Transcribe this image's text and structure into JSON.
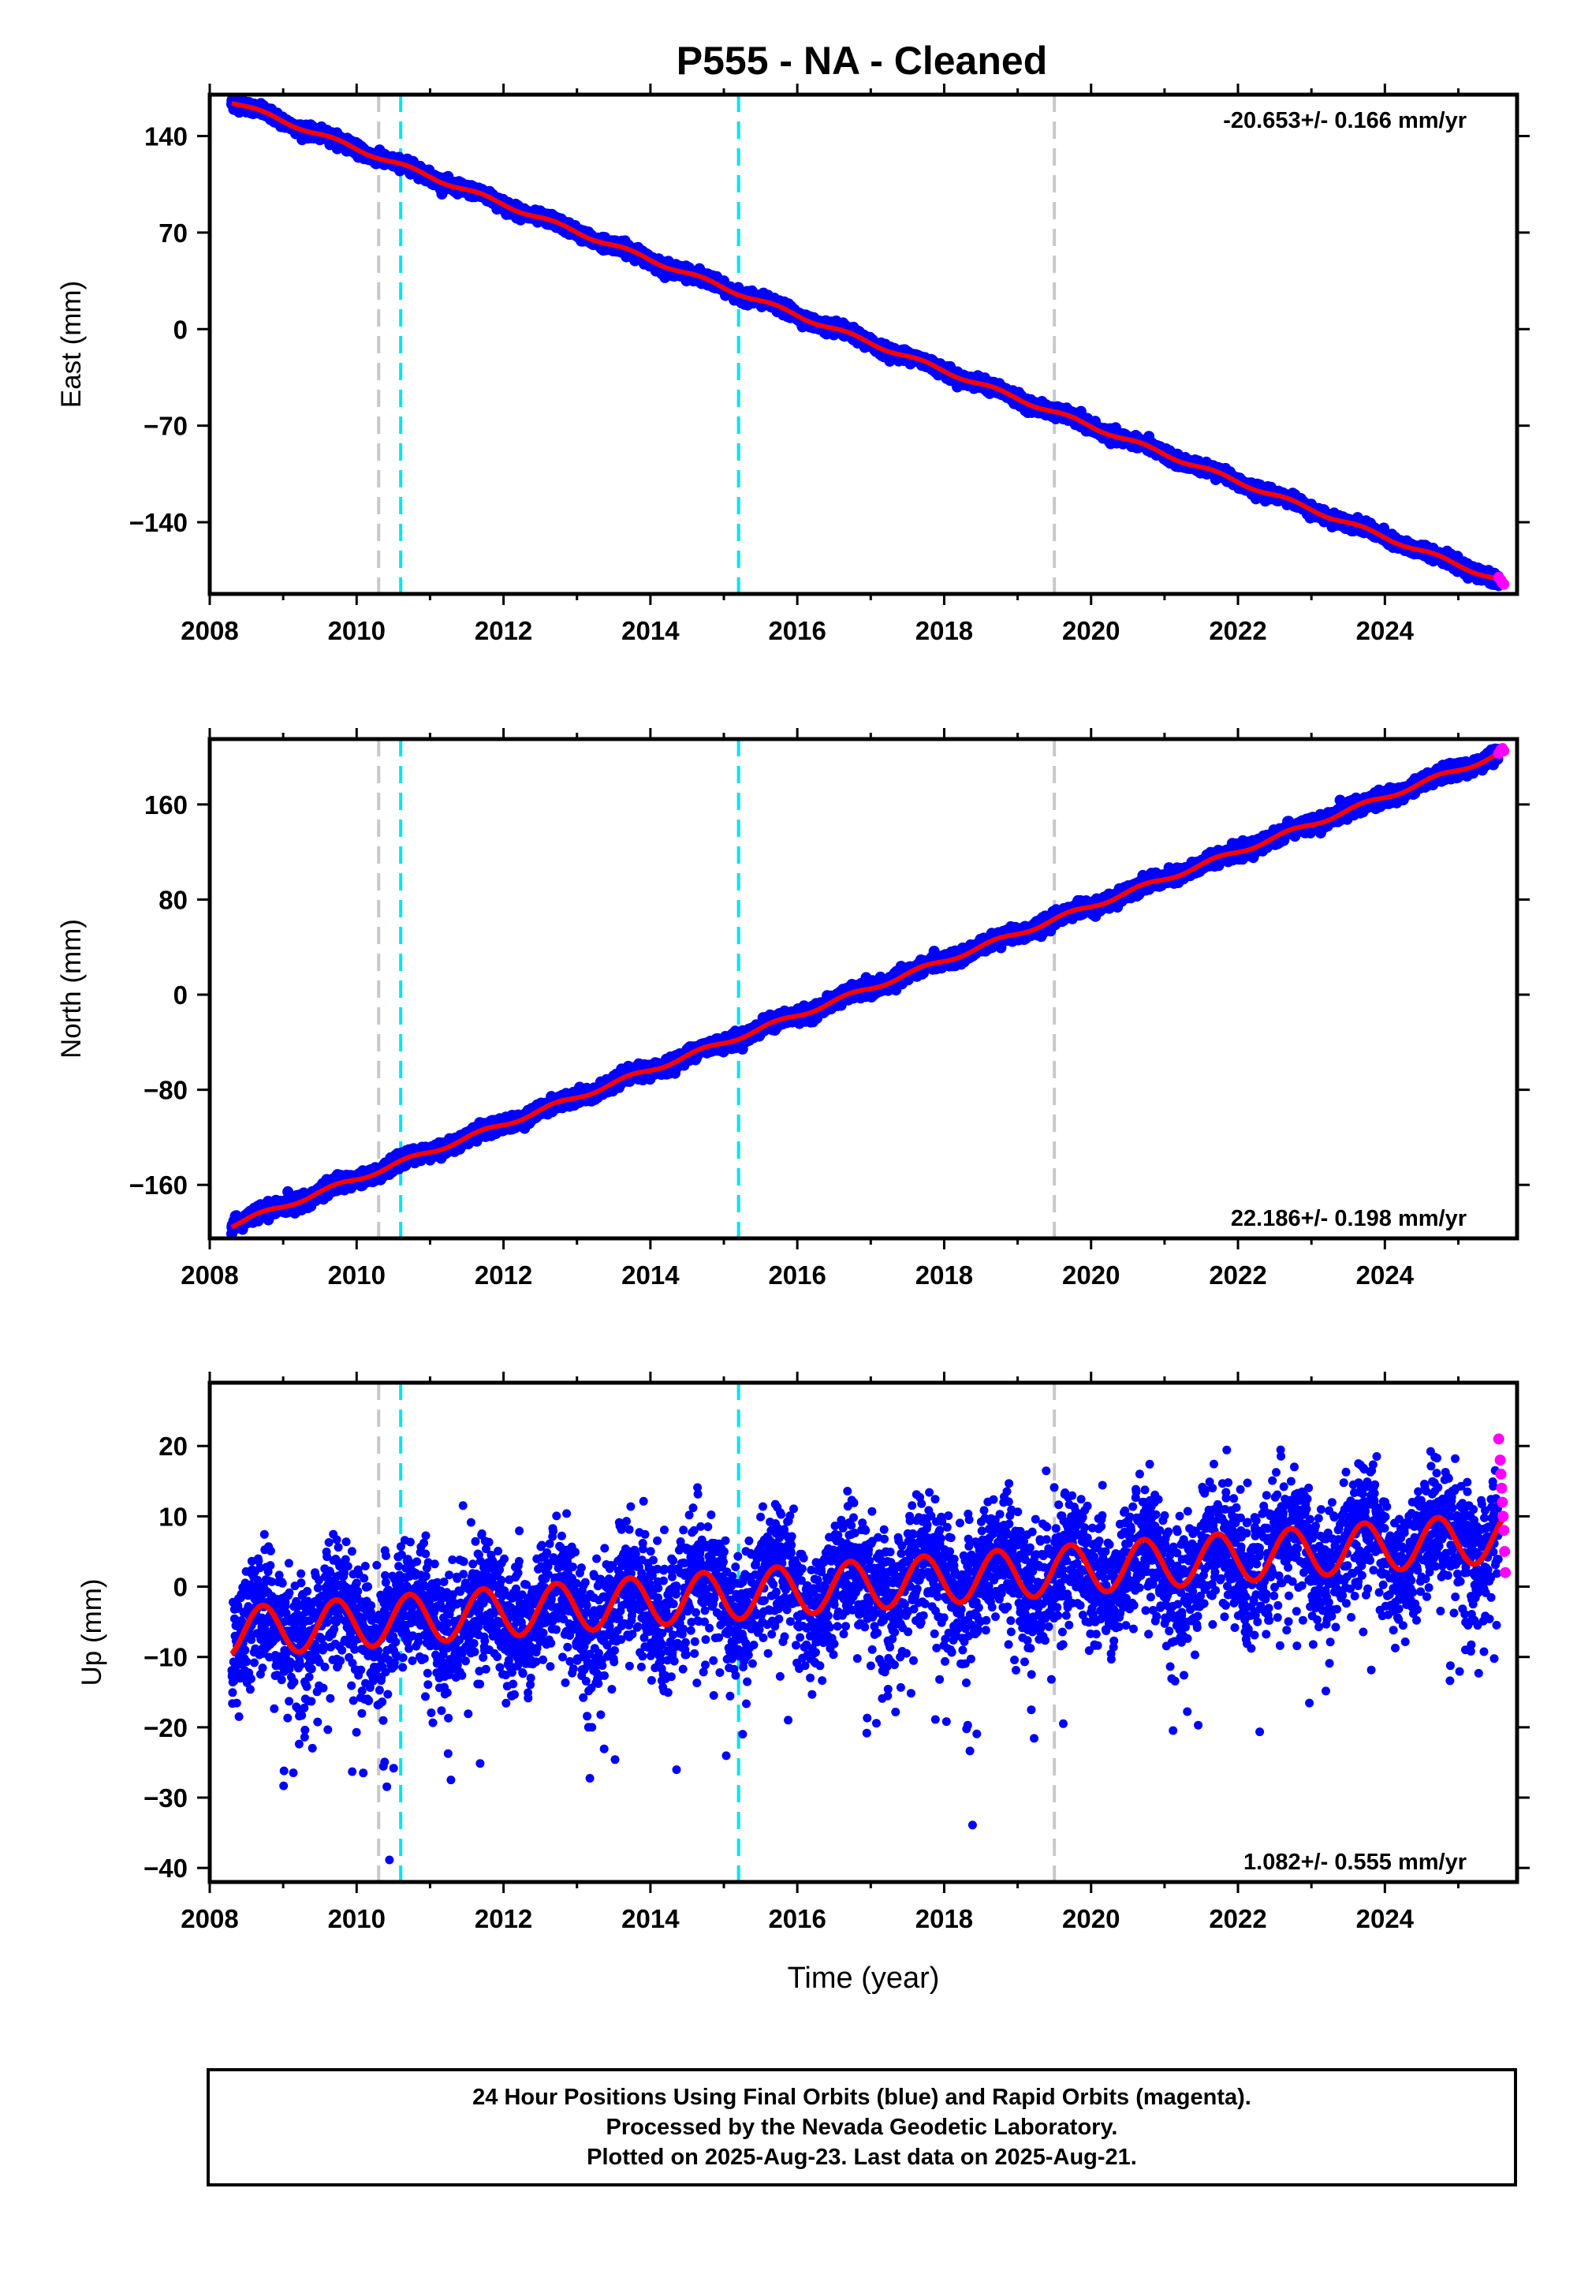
{
  "title": "P555  - NA - Cleaned",
  "footer": {
    "line1": "24 Hour Positions Using Final Orbits (blue) and Rapid Orbits (magenta).",
    "line2": "Processed by the Nevada Geodetic Laboratory.",
    "line3": "Plotted on 2025-Aug-23. Last data on 2025-Aug-21."
  },
  "colors": {
    "final": "#0000ff",
    "rapid": "#ff00ff",
    "model": "#ff0000",
    "event_gray": "#c8c8c8",
    "event_cyan": "#00e5ee"
  },
  "chart_data": [
    {
      "type": "scatter",
      "component": "east",
      "ylabel": "East (mm)",
      "xlabel": "",
      "xlim": [
        2008.0,
        2025.8
      ],
      "ylim": [
        -192,
        170
      ],
      "xticks": [
        2008,
        2010,
        2012,
        2014,
        2016,
        2018,
        2020,
        2022,
        2024
      ],
      "yticks": [
        140,
        70,
        0,
        -70,
        -140
      ],
      "ytick_labels": [
        "140",
        "70",
        "0",
        "−70",
        "−140"
      ],
      "rate_label": "-20.653+/- 0.166 mm/yr",
      "rate_position": "top-right",
      "trend": {
        "start": [
          2008.3,
          165
        ],
        "end": [
          2025.6,
          -183
        ]
      },
      "seasonal_amplitude": 1.5,
      "noise": 2.0,
      "gray_events": [
        2010.3,
        2019.5
      ],
      "cyan_events": [
        2010.6,
        2015.2
      ],
      "rapid_points": {
        "x": [
          2025.55,
          2025.58,
          2025.6,
          2025.62
        ],
        "y": [
          -180,
          -182,
          -184,
          -185
        ]
      }
    },
    {
      "type": "scatter",
      "component": "north",
      "ylabel": "North (mm)",
      "xlabel": "",
      "xlim": [
        2008.0,
        2025.8
      ],
      "ylim": [
        -205,
        215
      ],
      "xticks": [
        2008,
        2010,
        2012,
        2014,
        2016,
        2018,
        2020,
        2022,
        2024
      ],
      "yticks": [
        160,
        80,
        0,
        -80,
        -160
      ],
      "ytick_labels": [
        "160",
        "80",
        "0",
        "−80",
        "−160"
      ],
      "rate_label": "22.186+/- 0.198 mm/yr",
      "rate_position": "bottom-right",
      "trend": {
        "start": [
          2008.3,
          -194
        ],
        "end": [
          2025.6,
          203
        ]
      },
      "seasonal_amplitude": 2.0,
      "noise": 2.8,
      "gray_events": [
        2010.3,
        2019.5
      ],
      "cyan_events": [
        2010.6,
        2015.2
      ],
      "rapid_points": {
        "x": [
          2025.55,
          2025.58,
          2025.6,
          2025.62
        ],
        "y": [
          203,
          206,
          207,
          205
        ]
      }
    },
    {
      "type": "scatter",
      "component": "up",
      "ylabel": "Up (mm)",
      "xlabel": "Time (year)",
      "xlim": [
        2008.0,
        2025.8
      ],
      "ylim": [
        -42,
        29
      ],
      "xticks": [
        2008,
        2010,
        2012,
        2014,
        2016,
        2018,
        2020,
        2022,
        2024
      ],
      "yticks": [
        20,
        10,
        0,
        -10,
        -20,
        -30,
        -40
      ],
      "ytick_labels": [
        "20",
        "10",
        "0",
        "−10",
        "−20",
        "−30",
        "−40"
      ],
      "rate_label": "1.082+/- 0.555 mm/yr",
      "rate_position": "bottom-right",
      "trend": {
        "start": [
          2008.3,
          -6.5
        ],
        "end": [
          2025.6,
          7.0
        ]
      },
      "seasonal_amplitude": 3.5,
      "seasonal_peak_phase": 0.72,
      "noise": 4.5,
      "gray_events": [
        2010.3,
        2019.5
      ],
      "cyan_events": [
        2010.6,
        2015.2
      ],
      "rapid_points": {
        "x": [
          2025.55,
          2025.57,
          2025.58,
          2025.59,
          2025.6,
          2025.61,
          2025.62,
          2025.63,
          2025.64
        ],
        "y": [
          21,
          18,
          16,
          14,
          12,
          10,
          8,
          5,
          2
        ]
      }
    }
  ]
}
